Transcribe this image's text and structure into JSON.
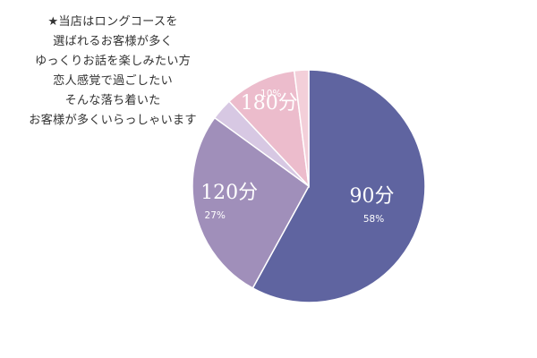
{
  "note_lines": [
    "★当店はロングコースを",
    "選ばれるお客様が多く",
    "ゆっくりお話を楽しみたい方",
    "恋人感覚で過ごしたい",
    "そんな落ち着いた",
    "お客様が多くいらっしゃいます"
  ],
  "chart_data": {
    "type": "pie",
    "title": "",
    "slices": [
      {
        "label": "90分",
        "value": 58,
        "value_label": "58%",
        "color": "#5f64a0",
        "show_label": true
      },
      {
        "label": "120分",
        "value": 27,
        "value_label": "27%",
        "color": "#a08fba",
        "show_label": true
      },
      {
        "label": "",
        "value": 3,
        "value_label": "",
        "color": "#d7c8e3",
        "show_label": false
      },
      {
        "label": "180分",
        "value": 10,
        "value_label": "10%",
        "color": "#ecbccc",
        "show_label": true
      },
      {
        "label": "",
        "value": 2,
        "value_label": "",
        "color": "#f3cfd9",
        "show_label": false
      }
    ]
  }
}
